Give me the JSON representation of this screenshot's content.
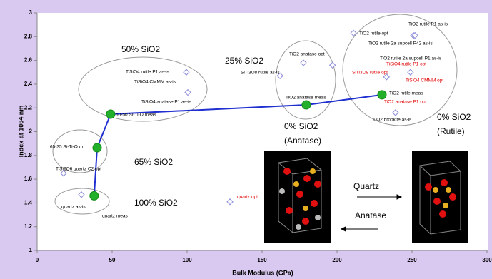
{
  "chart_data": {
    "type": "scatter",
    "x_label": "Bulk Modulus (GPa)",
    "y_label": "Index at 1064 nm",
    "xlim": [
      0,
      300
    ],
    "xticks": [
      0,
      50,
      100,
      150,
      200,
      250,
      300
    ],
    "ylim": [
      1,
      3
    ],
    "yticks": [
      1,
      1.2,
      1.4,
      1.6,
      1.8,
      2,
      2.2,
      2.4,
      2.6,
      2.8,
      3
    ],
    "series": [
      {
        "color": "#1f2fd0",
        "marker": "circle",
        "fill": "#22b02a",
        "line": true,
        "x": [
          38,
          40,
          49,
          179.5,
          230
        ],
        "values": [
          1.46,
          1.865,
          2.147,
          2.225,
          2.31
        ]
      },
      {
        "color": "#8a8ad8",
        "marker": "diamond",
        "line": false,
        "x": [
          99.5,
          100.5,
          17.6,
          29.5,
          128.6,
          162,
          177.6,
          197,
          211,
          251,
          249,
          239,
          233,
          252
        ],
        "values": [
          2.5,
          2.33,
          1.65,
          1.47,
          1.41,
          2.47,
          2.58,
          2.56,
          2.83,
          2.81,
          2.5,
          2.16,
          2.46,
          2.81
        ]
      }
    ],
    "annotations": [
      {
        "text": "50% SiO2",
        "color": "#000000"
      },
      {
        "text": "25% SiO2",
        "color": "#000000"
      },
      {
        "text": "65% SiO2",
        "color": "#000000"
      },
      {
        "text": "100% SiO2",
        "color": "#000000"
      },
      {
        "text": "0% SiO2",
        "color": "#000000"
      },
      {
        "text": "(Anatase)",
        "color": "#000000"
      },
      {
        "text": "0% SiO2",
        "color": "#000000"
      },
      {
        "text": "(Rutile)",
        "color": "#000000"
      },
      {
        "text": "TiSiO4 rutile P1 as-is",
        "color": "#000000"
      },
      {
        "text": "TiSiO4 CMMM as-is",
        "color": "#000000"
      },
      {
        "text": "TiSiO4 anatase P1 as-is",
        "color": "#000000"
      },
      {
        "text": "50-50 Si-Ti-O meas",
        "color": "#000000"
      },
      {
        "text": "65-35 Si-Ti-O m",
        "color": "#000000"
      },
      {
        "text": "TiSi2O6 quartz C2 opt",
        "color": "#000000"
      },
      {
        "text": "quartz as-is",
        "color": "#000000"
      },
      {
        "text": "quartz meas",
        "color": "#000000"
      },
      {
        "text": "quartz opt",
        "color": "#e00000"
      },
      {
        "text": "SiTi3O8 rutile as-is",
        "color": "#000000"
      },
      {
        "text": "TiO2 anatase opt",
        "color": "#000000"
      },
      {
        "text": "TiO2 anatase meas",
        "color": "#000000"
      },
      {
        "text": "TiO2 rutile P1 as-is",
        "color": "#000000"
      },
      {
        "text": "TiO2 rutile opt",
        "color": "#000000"
      },
      {
        "text": "TiO2 rutile 2a supcell P42 as-is",
        "color": "#000000"
      },
      {
        "text": "TiO2 rutile 2a supcell P1 as-is",
        "color": "#000000"
      },
      {
        "text": "TiSiO4 rutile P1 opt",
        "color": "#e00000"
      },
      {
        "text": "SiTi3O8 rutile opt",
        "color": "#e00000"
      },
      {
        "text": "TiSiO4 CMMM opt",
        "color": "#e00000"
      },
      {
        "text": "TiO2 rutile meas",
        "color": "#000000"
      },
      {
        "text": "TiO2 anatase P1 opt",
        "color": "#e00000"
      },
      {
        "text": "TiO2 brookite as-is",
        "color": "#000000"
      },
      {
        "text": "Quartz",
        "color": "#000000"
      },
      {
        "text": "Anatase",
        "color": "#000000"
      }
    ]
  }
}
